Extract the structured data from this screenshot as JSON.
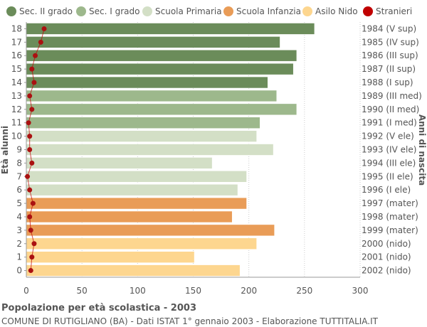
{
  "chart_data": {
    "type": "bar",
    "orientation": "horizontal",
    "ylabel_left": "Età alunni",
    "ylabel_right": "Anni di nascita",
    "xlim": [
      0,
      300
    ],
    "x_ticks": [
      "0",
      "50",
      "100",
      "150",
      "200",
      "250",
      "300"
    ],
    "grid": "vertical dotted",
    "legend_position": "top",
    "legend": [
      {
        "name": "Sec. II grado",
        "color": "#6b8c5a",
        "marker": "circle"
      },
      {
        "name": "Sec. I grado",
        "color": "#9db88c",
        "marker": "circle"
      },
      {
        "name": "Scuola Primaria",
        "color": "#d3dfc6",
        "marker": "circle"
      },
      {
        "name": "Scuola Infanzia",
        "color": "#e99c57",
        "marker": "circle"
      },
      {
        "name": "Asilo Nido",
        "color": "#fdd68f",
        "marker": "circle"
      },
      {
        "name": "Stranieri",
        "color": "#c00000",
        "marker": "circle"
      }
    ],
    "categories": [
      "18",
      "17",
      "16",
      "15",
      "14",
      "13",
      "12",
      "11",
      "10",
      "9",
      "8",
      "7",
      "6",
      "5",
      "4",
      "3",
      "2",
      "1",
      "0"
    ],
    "birth_years": [
      "1984 (V sup)",
      "1985 (IV sup)",
      "1986 (III sup)",
      "1987 (II sup)",
      "1988 (I sup)",
      "1989 (III med)",
      "1990 (II med)",
      "1991 (I med)",
      "1992 (V ele)",
      "1993 (IV ele)",
      "1994 (III ele)",
      "1995 (II ele)",
      "1996 (I ele)",
      "1997 (mater)",
      "1998 (mater)",
      "1999 (mater)",
      "2000 (nido)",
      "2001 (nido)",
      "2002 (nido)"
    ],
    "groups": [
      "Sec. II grado",
      "Sec. II grado",
      "Sec. II grado",
      "Sec. II grado",
      "Sec. II grado",
      "Sec. I grado",
      "Sec. I grado",
      "Sec. I grado",
      "Scuola Primaria",
      "Scuola Primaria",
      "Scuola Primaria",
      "Scuola Primaria",
      "Scuola Primaria",
      "Scuola Infanzia",
      "Scuola Infanzia",
      "Scuola Infanzia",
      "Asilo Nido",
      "Asilo Nido",
      "Asilo Nido"
    ],
    "series": [
      {
        "name": "Alunni",
        "values": [
          259,
          228,
          243,
          240,
          217,
          225,
          243,
          210,
          207,
          222,
          167,
          198,
          190,
          198,
          185,
          223,
          207,
          151,
          192
        ]
      },
      {
        "name": "Stranieri",
        "values": [
          16,
          13,
          8,
          5,
          7,
          3,
          5,
          2,
          3,
          3,
          5,
          1,
          3,
          6,
          3,
          4,
          7,
          5,
          4
        ]
      }
    ]
  },
  "caption": {
    "title": "Popolazione per età scolastica - 2003",
    "subtitle": "COMUNE DI RUTIGLIANO (BA) - Dati ISTAT 1° gennaio 2003 - Elaborazione TUTTITALIA.IT"
  }
}
